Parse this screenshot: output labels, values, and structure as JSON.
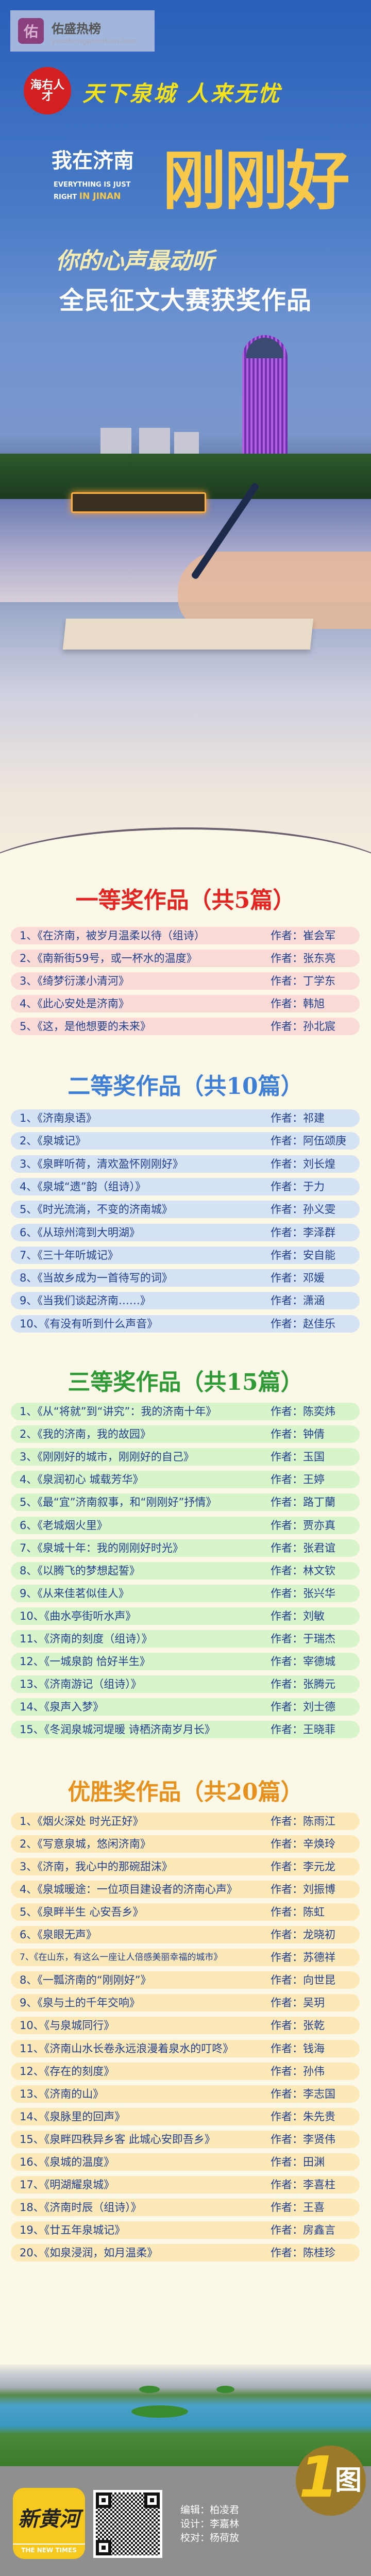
{
  "watermark": {
    "icon_char": "佑",
    "title": "佑盛热榜",
    "url": "youshengprecision.com",
    "icon_color": "#8a3f7e"
  },
  "header": {
    "seal_text": "海右人才",
    "slogan": "天下泉城  人来无忧",
    "title_line1": "我在济南",
    "english_line1": "EVERYTHING IS JUST",
    "english_line2_a": "RIGHT",
    "english_line2_b": "IN JINAN",
    "title_big": "刚刚好",
    "subtitle": "你的心声最动听",
    "main_title": "全民征文大赛获奖作品"
  },
  "author_prefix": "作者：",
  "sections": [
    {
      "title": "一等奖作品（共5篇）",
      "color": "#e52320",
      "row_bg": "#f9dad6",
      "items": [
        {
          "title": "1、《在济南，被岁月温柔以待（组诗）",
          "author": "崔会军"
        },
        {
          "title": "2、《南新街59号，或一杯水的温度》",
          "author": "张东亮"
        },
        {
          "title": "3、《绮梦衍漾小清河》",
          "author": "丁学东"
        },
        {
          "title": "4、《此心安处是济南》",
          "author": "韩旭"
        },
        {
          "title": "5、《这，是他想要的未来》",
          "author": "孙北宸"
        }
      ]
    },
    {
      "title": "二等奖作品（共10篇）",
      "color": "#3d7fd6",
      "row_bg": "#d4e2f4",
      "items": [
        {
          "title": "1、《济南泉语》",
          "author": "祁建"
        },
        {
          "title": "2、《泉城记》",
          "author": "阿伍颂庚"
        },
        {
          "title": "3、《泉畔听荷，清欢盈怀刚刚好》",
          "author": "刘长煌"
        },
        {
          "title": "4、《泉城“遗”韵（组诗）》",
          "author": "于力"
        },
        {
          "title": "5、《时光流淌，不变的济南城》",
          "author": "孙义雯"
        },
        {
          "title": "6、《从琼州湾到大明湖》",
          "author": "李泽群"
        },
        {
          "title": "7、《三十年听城记》",
          "author": "安自能"
        },
        {
          "title": "8、《当故乡成为一首待写的词》",
          "author": "邓媛"
        },
        {
          "title": "9、《当我们谈起济南……》",
          "author": "潇涵"
        },
        {
          "title": "10、《有没有听到什么声音》",
          "author": "赵佳乐"
        }
      ]
    },
    {
      "title": "三等奖作品（共15篇）",
      "color": "#2e9a36",
      "row_bg": "#d8f4ca",
      "items": [
        {
          "title": "1、《从“将就”到“讲究”：我的济南十年》",
          "author": "陈奕炜"
        },
        {
          "title": "2、《我的济南，我的故园》",
          "author": "钟倩"
        },
        {
          "title": "3、《刚刚好的城市，刚刚好的自己》",
          "author": "玉国"
        },
        {
          "title": "4、《泉润初心 城载芳华》",
          "author": "王婷"
        },
        {
          "title": "5、《最“宜”济南叙事，和“刚刚好”抒情》",
          "author": "路丁蘭"
        },
        {
          "title": "6、《老城烟火里》",
          "author": "贾亦真"
        },
        {
          "title": "7、《泉城十年：我的刚刚好时光》",
          "author": "张君谊"
        },
        {
          "title": "8、《以腾飞的梦想起誓》",
          "author": "林文钦"
        },
        {
          "title": "9、《从来佳茗似佳人》",
          "author": "张兴华"
        },
        {
          "title": "10、《曲水亭街听水声》",
          "author": "刘敏"
        },
        {
          "title": "11、《济南的刻度（组诗）》",
          "author": "于瑞杰"
        },
        {
          "title": "12、《一城泉韵 恰好半生》",
          "author": "宰德城"
        },
        {
          "title": "13、《济南游记（组诗）》",
          "author": "张腾元"
        },
        {
          "title": "14、《泉声入梦》",
          "author": "刘士德"
        },
        {
          "title": "15、《冬润泉城河堤暖 诗栖济南岁月长》",
          "author": "王晓菲"
        }
      ]
    },
    {
      "title": "优胜奖作品（共20篇）",
      "color": "#e8901c",
      "row_bg": "#fde9b8",
      "items": [
        {
          "title": "1、《烟火深处 时光正好》",
          "author": "陈雨江"
        },
        {
          "title": "2、《写意泉城，悠闲济南》",
          "author": "辛焕玲"
        },
        {
          "title": "3、《济南，我心中的那碗甜沫》",
          "author": "李元龙"
        },
        {
          "title": "4、《泉城暖途：一位项目建设者的济南心声》",
          "author": "刘振博"
        },
        {
          "title": "5、《泉畔半生 心安吾乡》",
          "author": "陈虹"
        },
        {
          "title": "6、《泉眼无声》",
          "author": "龙晓初"
        },
        {
          "title": "7、《在山东，有这么一座让人倍感美丽幸福的城市》",
          "author": "苏德祥"
        },
        {
          "title": "8、《一瓢济南的“刚刚好”》",
          "author": "向世昆"
        },
        {
          "title": "9、《泉与土的千年交响》",
          "author": "吴玥"
        },
        {
          "title": "10、《与泉城同行》",
          "author": "张乾"
        },
        {
          "title": "11、《济南山水长卷永远浪漫着泉水的叮咚》",
          "author": "钱海"
        },
        {
          "title": "12、《存在的刻度》",
          "author": "孙伟"
        },
        {
          "title": "13、《济南的山》",
          "author": "李志国"
        },
        {
          "title": "14、《泉脉里的回声》",
          "author": "朱先贵"
        },
        {
          "title": "15、《泉畔四秩异乡客 此城心安即吾乡》",
          "author": "李贤伟"
        },
        {
          "title": "16、《泉城的温度》",
          "author": "田渊"
        },
        {
          "title": "17、《明湖耀泉城》",
          "author": "李喜柱"
        },
        {
          "title": "18、《济南时辰（组诗）》",
          "author": "王喜"
        },
        {
          "title": "19、《廿五年泉城记》",
          "author": "房鑫言"
        },
        {
          "title": "20、《如泉浸润，如月温柔》",
          "author": "陈桂珍"
        }
      ]
    }
  ],
  "footer": {
    "logo_cn": "新黄河",
    "logo_en": "THE NEW TIMES",
    "credits": [
      "编辑：柏凌君",
      "设计：李嘉林",
      "校对：杨荷放"
    ],
    "badge_number": "1",
    "badge_text": "图",
    "background": "#8f8f8f"
  }
}
